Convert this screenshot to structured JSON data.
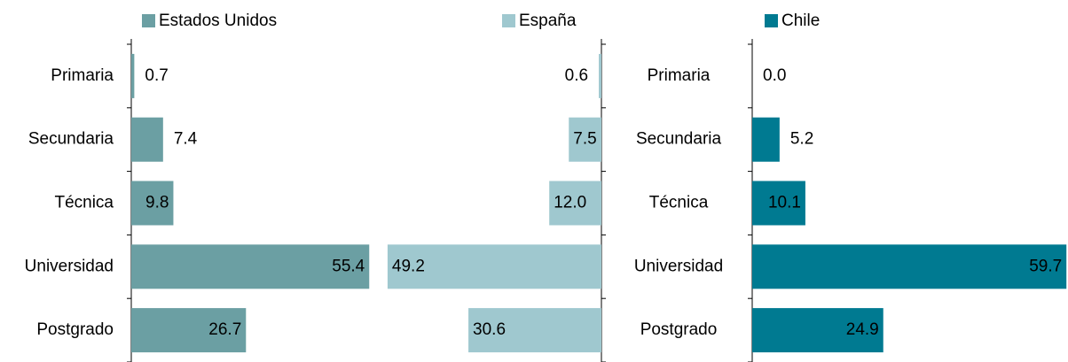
{
  "chart_data": [
    {
      "type": "barh",
      "legend": "Estados Unidos",
      "color": "#6b9fa3",
      "categories": [
        "Primaria",
        "Secundaria",
        "Técnica",
        "Universidad",
        "Postgrado"
      ],
      "values": [
        0.7,
        7.4,
        9.8,
        55.4,
        26.7
      ],
      "value_labels": [
        "0.7",
        "7.4",
        "9.8",
        "55.4",
        "26.7"
      ],
      "xlim": [
        0,
        57
      ]
    },
    {
      "type": "barh",
      "legend": "España",
      "color": "#9fc8cf",
      "reversed": true,
      "categories": [
        null,
        null,
        null,
        null,
        null
      ],
      "values": [
        0.6,
        7.5,
        12.0,
        49.2,
        30.6
      ],
      "value_labels": [
        "0.6",
        "7.5",
        "12.0",
        "49.2",
        "30.6"
      ],
      "xlim": [
        0,
        50
      ]
    },
    {
      "type": "barh",
      "legend": "Chile",
      "color": "#007a91",
      "categories": [
        "Primaria",
        "Secundaria",
        "Técnica",
        "Universidad",
        "Postgrado"
      ],
      "values": [
        0.0,
        5.2,
        10.1,
        59.7,
        24.9
      ],
      "value_labels": [
        "0.0",
        "5.2",
        "10.1",
        "59.7",
        "24.9"
      ],
      "xlim": [
        0,
        60
      ]
    }
  ]
}
